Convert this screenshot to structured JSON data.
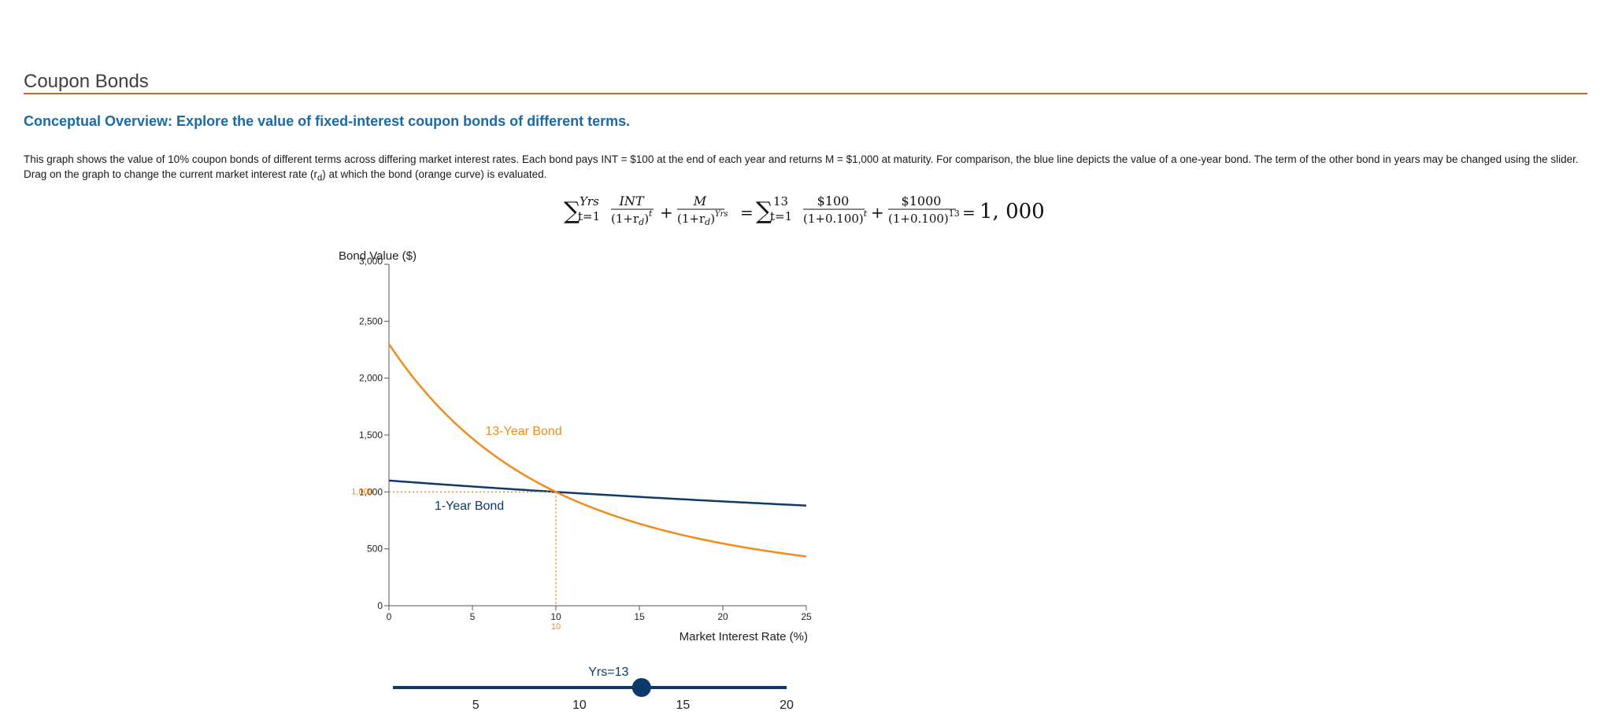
{
  "page": {
    "title": "Coupon Bonds",
    "subtitle": "Conceptual Overview: Explore the value of fixed-interest coupon bonds of different terms.",
    "description": {
      "part1": "This graph shows the value of 10% coupon bonds of different terms across differing market interest rates. Each bond pays INT = $100 at the end of each year and returns M = $1,000 at maturity. For comparison, the blue line depicts the value of a one-year bond. The term of the other bond in years may be changed using the slider. Drag on the graph to change the current market interest rate (r",
      "sub": "d",
      "part2": ") at which the bond (orange curve) is evaluated."
    }
  },
  "equation": {
    "sum_symbol": "∑",
    "upper_limit": "Yrs",
    "lower_limit": "t=1",
    "int_num": "INT",
    "int_den": "(1+r",
    "int_den_sub": "d",
    "int_den_close": ")",
    "int_den_exp": "t",
    "plus": "+",
    "m_num": "M",
    "m_den": "(1+r",
    "m_den_sub": "d",
    "m_den_close": ")",
    "m_den_exp": "Yrs",
    "equals": "=",
    "years_value": "13",
    "coupon_num": "$100",
    "coupon_den": "(1+0.100)",
    "coupon_den_exp": "t",
    "face_num": "$1000",
    "face_den": "(1+0.100)",
    "face_den_exp": "13",
    "result": "1, 000"
  },
  "chart_data": {
    "type": "line",
    "xlabel": "Market Interest Rate (%)",
    "ylabel": "Bond Value ($)",
    "xlim": [
      0,
      25
    ],
    "ylim": [
      0,
      3000
    ],
    "x_ticks": [
      0,
      5,
      10,
      15,
      20,
      25
    ],
    "x_tick_labels": [
      "0",
      "5",
      "10",
      "15",
      "20",
      "25"
    ],
    "y_ticks": [
      0,
      500,
      1000,
      1500,
      2000,
      2500,
      3000
    ],
    "y_tick_labels": [
      "0",
      "500",
      "1,000",
      "1,500",
      "2,000",
      "2,500",
      "3,000"
    ],
    "coupon": 100,
    "face_value": 1000,
    "series": [
      {
        "name": "1-Year Bond",
        "years": 1,
        "color": "#0d3a6b"
      },
      {
        "name": "13-Year Bond",
        "years": 13,
        "color": "#f28a1e"
      }
    ],
    "current_rate": 10,
    "current_rate_label": "10",
    "current_value": 1000,
    "current_value_label": "1,000",
    "marker_color": "#f28a1e"
  },
  "slider": {
    "label": "Yrs=13",
    "value": 13,
    "min": 1,
    "max": 20,
    "tick_values": [
      5,
      10,
      15,
      20
    ],
    "tick_labels": [
      "5",
      "10",
      "15",
      "20"
    ],
    "color": "#0d3a6b"
  }
}
